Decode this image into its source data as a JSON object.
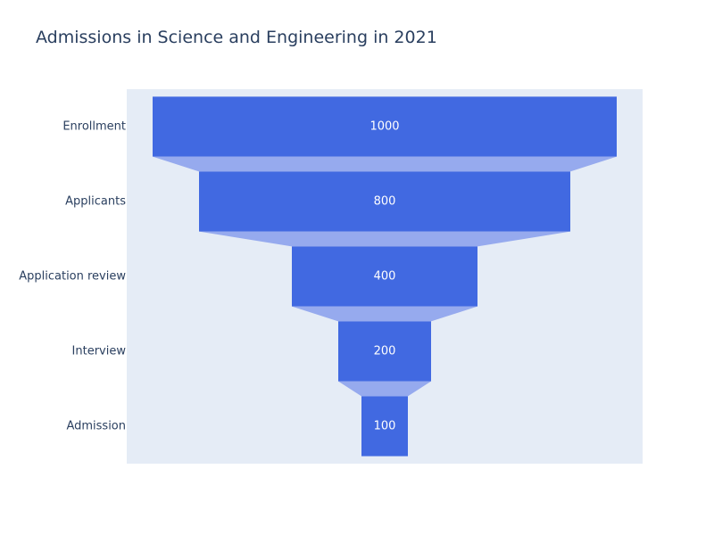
{
  "chart_data": {
    "type": "funnel",
    "title": "Admissions in Science and Engineering in 2021",
    "categories": [
      "Enrollment",
      "Applicants",
      "Application review",
      "Interview",
      "Admission"
    ],
    "values": [
      1000,
      800,
      400,
      200,
      100
    ],
    "xlabel": "",
    "ylabel": "",
    "grid": false,
    "legend": "none"
  },
  "colors": {
    "bar": "#4169e1",
    "connector": "#96aaee",
    "plot_background": "#e5ecf6",
    "text": "#2a3f5f"
  }
}
